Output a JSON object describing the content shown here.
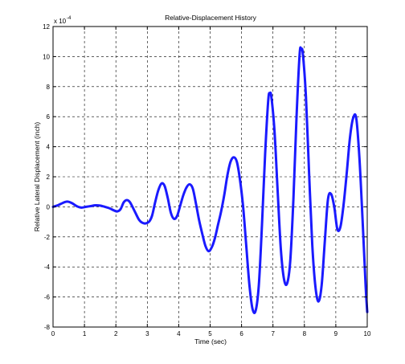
{
  "chart_data": {
    "type": "line",
    "title": "Relative-Displacement History",
    "xlabel": "Time (sec)",
    "ylabel": "Relative Lateral Displacement (inch)",
    "y_exponent_label": "x 10",
    "y_exponent_power": "-4",
    "xlim": [
      0,
      10
    ],
    "ylim": [
      -8,
      12
    ],
    "x_ticks": [
      "0",
      "1",
      "2",
      "3",
      "4",
      "5",
      "6",
      "7",
      "8",
      "9",
      "10"
    ],
    "y_ticks": [
      "-8",
      "-6",
      "-4",
      "-2",
      "0",
      "2",
      "4",
      "6",
      "8",
      "10",
      "12"
    ],
    "grid": true,
    "grid_style": "dashed",
    "series": [
      {
        "color": "#1a1aff",
        "points": [
          [
            0.0,
            0.0
          ],
          [
            0.15,
            0.1
          ],
          [
            0.3,
            0.25
          ],
          [
            0.45,
            0.35
          ],
          [
            0.6,
            0.25
          ],
          [
            0.75,
            0.05
          ],
          [
            0.9,
            -0.05
          ],
          [
            1.05,
            0.0
          ],
          [
            1.2,
            0.05
          ],
          [
            1.35,
            0.1
          ],
          [
            1.5,
            0.08
          ],
          [
            1.65,
            0.0
          ],
          [
            1.8,
            -0.1
          ],
          [
            1.95,
            -0.25
          ],
          [
            2.05,
            -0.3
          ],
          [
            2.15,
            -0.15
          ],
          [
            2.25,
            0.3
          ],
          [
            2.35,
            0.45
          ],
          [
            2.45,
            0.3
          ],
          [
            2.6,
            -0.3
          ],
          [
            2.75,
            -0.9
          ],
          [
            2.9,
            -1.1
          ],
          [
            3.05,
            -1.0
          ],
          [
            3.15,
            -0.6
          ],
          [
            3.25,
            0.3
          ],
          [
            3.35,
            1.1
          ],
          [
            3.45,
            1.55
          ],
          [
            3.55,
            1.4
          ],
          [
            3.65,
            0.6
          ],
          [
            3.75,
            -0.4
          ],
          [
            3.85,
            -0.8
          ],
          [
            3.95,
            -0.6
          ],
          [
            4.05,
            0.1
          ],
          [
            4.15,
            0.8
          ],
          [
            4.25,
            1.3
          ],
          [
            4.35,
            1.5
          ],
          [
            4.45,
            1.2
          ],
          [
            4.55,
            0.2
          ],
          [
            4.65,
            -0.9
          ],
          [
            4.75,
            -1.8
          ],
          [
            4.85,
            -2.6
          ],
          [
            4.95,
            -2.95
          ],
          [
            5.05,
            -2.7
          ],
          [
            5.15,
            -2.1
          ],
          [
            5.25,
            -1.2
          ],
          [
            5.35,
            -0.3
          ],
          [
            5.45,
            0.8
          ],
          [
            5.55,
            2.1
          ],
          [
            5.65,
            3.0
          ],
          [
            5.75,
            3.3
          ],
          [
            5.85,
            3.0
          ],
          [
            5.95,
            1.8
          ],
          [
            6.05,
            0.0
          ],
          [
            6.15,
            -2.6
          ],
          [
            6.25,
            -5.2
          ],
          [
            6.35,
            -6.8
          ],
          [
            6.45,
            -6.9
          ],
          [
            6.55,
            -5.2
          ],
          [
            6.65,
            -1.2
          ],
          [
            6.75,
            3.5
          ],
          [
            6.85,
            7.1
          ],
          [
            6.9,
            7.55
          ],
          [
            6.95,
            7.3
          ],
          [
            7.05,
            5.0
          ],
          [
            7.15,
            1.0
          ],
          [
            7.25,
            -2.8
          ],
          [
            7.35,
            -4.8
          ],
          [
            7.45,
            -5.1
          ],
          [
            7.55,
            -3.6
          ],
          [
            7.65,
            0.5
          ],
          [
            7.75,
            6.0
          ],
          [
            7.85,
            10.2
          ],
          [
            7.9,
            10.45
          ],
          [
            7.95,
            10.2
          ],
          [
            8.05,
            7.3
          ],
          [
            8.15,
            2.2
          ],
          [
            8.25,
            -2.5
          ],
          [
            8.35,
            -5.3
          ],
          [
            8.45,
            -6.3
          ],
          [
            8.55,
            -5.2
          ],
          [
            8.65,
            -2.3
          ],
          [
            8.75,
            0.5
          ],
          [
            8.85,
            0.85
          ],
          [
            8.95,
            0.0
          ],
          [
            9.05,
            -1.5
          ],
          [
            9.15,
            -1.3
          ],
          [
            9.25,
            0.2
          ],
          [
            9.35,
            2.3
          ],
          [
            9.45,
            4.6
          ],
          [
            9.55,
            5.9
          ],
          [
            9.65,
            5.9
          ],
          [
            9.75,
            3.3
          ],
          [
            9.85,
            -0.8
          ],
          [
            9.95,
            -5.3
          ],
          [
            10.0,
            -7.0
          ]
        ]
      }
    ]
  }
}
